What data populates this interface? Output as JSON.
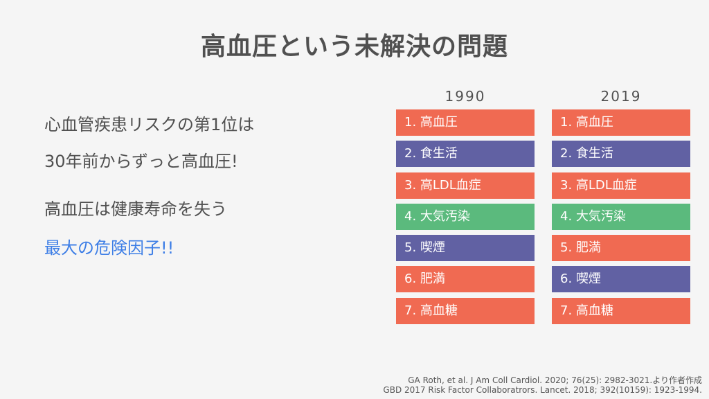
{
  "title": "高血圧という未解決の問題",
  "lead_lines": [
    "心血管疾患リスクの第1位は",
    "30年前からずっと高血圧!",
    "高血圧は健康寿命を失う",
    "最大の危険因子!!"
  ],
  "columns": [
    {
      "year": "1990",
      "items": [
        {
          "label": "1. 高血圧",
          "color": "#f06a52"
        },
        {
          "label": "2. 食生活",
          "color": "#6161a3"
        },
        {
          "label": "3. 高LDL血症",
          "color": "#f06a52"
        },
        {
          "label": "4. 大気汚染",
          "color": "#5bba7d"
        },
        {
          "label": "5. 喫煙",
          "color": "#6161a3"
        },
        {
          "label": "6. 肥満",
          "color": "#f06a52"
        },
        {
          "label": "7. 高血糖",
          "color": "#f06a52"
        }
      ]
    },
    {
      "year": "2019",
      "items": [
        {
          "label": "1. 高血圧",
          "color": "#f06a52"
        },
        {
          "label": "2. 食生活",
          "color": "#6161a3"
        },
        {
          "label": "3. 高LDL血症",
          "color": "#f06a52"
        },
        {
          "label": "4. 大気汚染",
          "color": "#5bba7d"
        },
        {
          "label": "5. 肥満",
          "color": "#f06a52"
        },
        {
          "label": "6. 喫煙",
          "color": "#6161a3"
        },
        {
          "label": "7. 高血糖",
          "color": "#f06a52"
        }
      ]
    }
  ],
  "citations": [
    "GA Roth, et al. J Am Coll Cardiol. 2020; 76(25): 2982-3021.より作者作成",
    "GBD 2017 Risk Factor Collaboratrors. Lancet. 2018; 392(10159): 1923-1994."
  ]
}
